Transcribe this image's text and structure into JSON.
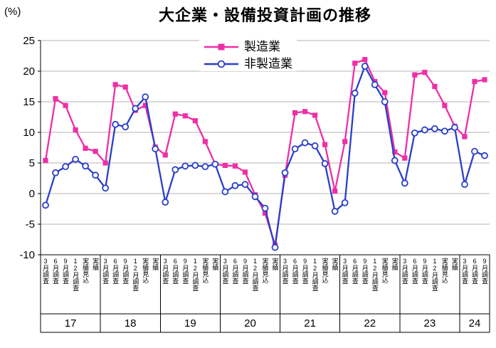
{
  "colors": {
    "manufacturing": "#ee2fa5",
    "non_manufacturing": "#2a3fc8",
    "grid": "#b3b3b3",
    "axis": "#000000"
  },
  "chart_data": {
    "type": "line",
    "title": "大企業・設備投資計画の推移",
    "ylabel": "(%)",
    "ylim": [
      -10,
      25
    ],
    "y_ticks": [
      25,
      20,
      15,
      10,
      5,
      0,
      -5,
      -10
    ],
    "grid": "horizontal",
    "legend_position": "top-center-inside",
    "x_groups": [
      {
        "year": "17",
        "surveys": [
          "3月調査",
          "6月調査",
          "9月調査",
          "12月調査",
          "実績見込",
          "実績"
        ]
      },
      {
        "year": "18",
        "surveys": [
          "3月調査",
          "6月調査",
          "9月調査",
          "12月調査",
          "実績見込",
          "実績"
        ]
      },
      {
        "year": "19",
        "surveys": [
          "3月調査",
          "6月調査",
          "9月調査",
          "12月調査",
          "実績見込",
          "実績"
        ]
      },
      {
        "year": "20",
        "surveys": [
          "3月調査",
          "6月調査",
          "9月調査",
          "12月調査",
          "実績見込",
          "実績"
        ]
      },
      {
        "year": "21",
        "surveys": [
          "3月調査",
          "6月調査",
          "9月調査",
          "12月調査",
          "実績見込",
          "実績"
        ]
      },
      {
        "year": "22",
        "surveys": [
          "3月調査",
          "6月調査",
          "9月調査",
          "12月調査",
          "実績見込",
          "実績"
        ]
      },
      {
        "year": "23",
        "surveys": [
          "3月調査",
          "6月調査",
          "9月調査",
          "12月調査",
          "実績見込",
          "実績"
        ]
      },
      {
        "year": "24",
        "surveys": [
          "3月調査",
          "6月調査",
          "9月調査"
        ]
      }
    ],
    "series": [
      {
        "name": "製造業",
        "marker": "filled-square",
        "color": "#ee2fa5",
        "values": [
          5.4,
          15.5,
          14.4,
          10.4,
          7.4,
          6.9,
          5.0,
          17.8,
          17.4,
          13.6,
          14.4,
          7.6,
          6.3,
          13.0,
          12.7,
          11.9,
          8.5,
          4.8,
          4.6,
          4.5,
          3.5,
          -0.2,
          -3.2,
          -8.4,
          3.0,
          13.2,
          13.4,
          12.8,
          8.0,
          0.4,
          8.5,
          21.3,
          21.9,
          18.3,
          16.5,
          6.8,
          5.8,
          19.4,
          19.8,
          17.5,
          14.4,
          11.0,
          9.3,
          18.3,
          18.6
        ]
      },
      {
        "name": "非製造業",
        "marker": "open-circle",
        "color": "#2a3fc8",
        "values": [
          -1.9,
          3.4,
          4.4,
          5.6,
          4.5,
          3.0,
          0.9,
          11.3,
          10.9,
          13.9,
          15.8,
          7.3,
          -1.4,
          3.9,
          4.5,
          4.6,
          4.4,
          4.8,
          0.3,
          1.3,
          1.5,
          -0.5,
          -2.4,
          -8.8,
          3.4,
          7.3,
          8.3,
          7.8,
          4.9,
          -2.9,
          -1.5,
          16.4,
          20.8,
          17.8,
          15.0,
          5.4,
          1.7,
          9.9,
          10.4,
          10.6,
          10.2,
          10.8,
          1.5,
          6.9,
          6.2
        ]
      }
    ]
  }
}
